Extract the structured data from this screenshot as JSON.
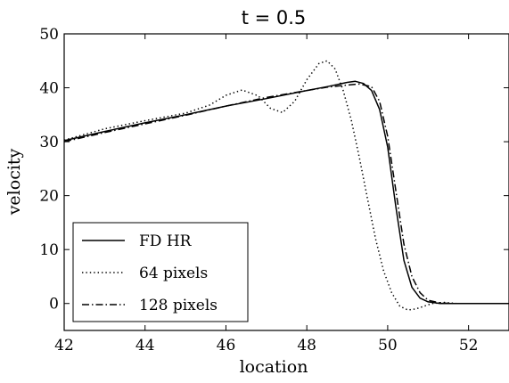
{
  "chart_data": {
    "type": "line",
    "title": "t = 0.5",
    "xlabel": "location",
    "ylabel": "velocity",
    "xlim": [
      42,
      53
    ],
    "ylim": [
      -5,
      50
    ],
    "xticks": [
      42,
      44,
      46,
      48,
      50,
      52
    ],
    "yticks": [
      0,
      10,
      20,
      30,
      40,
      50
    ],
    "legend": {
      "placement": "lower-left"
    },
    "grid": false,
    "series": [
      {
        "name": "FD HR",
        "style": "solid",
        "color": "#000000",
        "x": [
          42,
          43,
          44,
          45,
          46,
          47,
          48,
          48.5,
          49,
          49.2,
          49.4,
          49.6,
          49.8,
          50.0,
          50.2,
          50.4,
          50.6,
          50.8,
          51.0,
          51.3,
          51.6,
          52,
          53
        ],
        "y": [
          30.2,
          31.9,
          33.5,
          35.0,
          36.6,
          38.0,
          39.5,
          40.2,
          41.0,
          41.2,
          40.8,
          39.5,
          36.0,
          29.0,
          18.0,
          8.0,
          3.0,
          1.0,
          0.3,
          0.0,
          0.0,
          0.0,
          0.0
        ]
      },
      {
        "name": "64 pixels",
        "style": "dotted",
        "color": "#000000",
        "x": [
          42,
          43,
          44,
          45,
          45.6,
          46.0,
          46.4,
          46.8,
          47.1,
          47.4,
          47.7,
          48.0,
          48.3,
          48.5,
          48.7,
          48.9,
          49.1,
          49.3,
          49.5,
          49.7,
          49.9,
          50.1,
          50.3,
          50.5,
          50.7,
          50.9,
          51.1,
          51.4,
          51.7,
          52,
          53
        ],
        "y": [
          30.3,
          32.4,
          33.9,
          35.3,
          36.8,
          38.6,
          39.6,
          38.5,
          36.2,
          35.4,
          37.5,
          41.5,
          44.5,
          45.0,
          43.5,
          39.5,
          34.0,
          27.0,
          19.5,
          12.0,
          6.0,
          2.0,
          -0.5,
          -1.2,
          -1.0,
          -0.5,
          0.0,
          0.2,
          0.0,
          0.0,
          0.0
        ]
      },
      {
        "name": "128 pixels",
        "style": "dashdot",
        "color": "#000000",
        "x": [
          42,
          43,
          44,
          45,
          46,
          47,
          48,
          48.5,
          49,
          49.3,
          49.6,
          49.8,
          50.0,
          50.2,
          50.4,
          50.6,
          50.8,
          51.0,
          51.3,
          51.6,
          52,
          53
        ],
        "y": [
          30.0,
          31.7,
          33.3,
          34.9,
          36.6,
          38.2,
          39.5,
          40.1,
          40.5,
          40.7,
          40.2,
          37.5,
          31.0,
          21.0,
          11.0,
          5.0,
          2.0,
          0.6,
          0.1,
          0.0,
          0.0,
          0.0
        ]
      }
    ]
  }
}
